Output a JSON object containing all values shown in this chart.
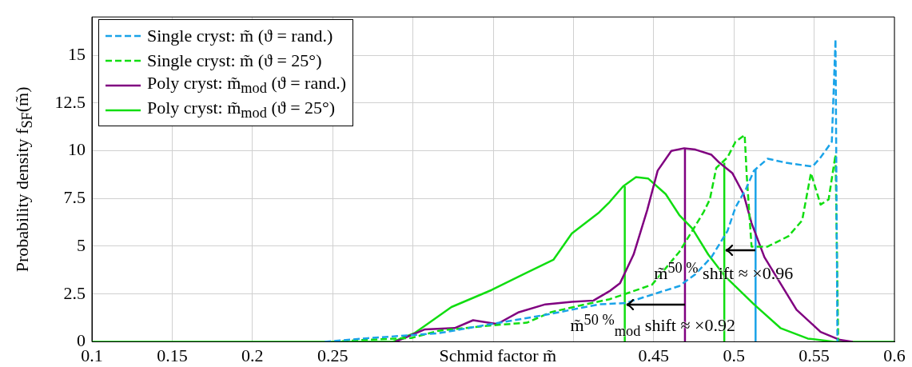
{
  "chart_data": {
    "type": "line",
    "xlabel": "Schmid factor m̃",
    "ylabel": "Probability density f$_{SF}$(m̃)",
    "xlim": [
      0.1,
      0.6
    ],
    "ylim": [
      0,
      17
    ],
    "xticks": [
      0.1,
      0.15,
      0.2,
      0.25,
      {
        "value": 0.3,
        "label": null
      },
      {
        "value": 0.35,
        "label": null
      },
      {
        "value": 0.4,
        "label": null
      },
      0.45,
      0.5,
      0.55,
      0.6
    ],
    "yticks": [
      0,
      2.5,
      5,
      7.5,
      10,
      12.5,
      15
    ],
    "grid": true,
    "legend": "top left",
    "series": [
      {
        "name": "Single cryst: m̃ (ϑ = rand.)",
        "color": "#1aa3e8",
        "line_style": "dashed",
        "x": [
          0.245,
          0.272,
          0.299,
          0.316,
          0.349,
          0.3825,
          0.416,
          0.4325,
          0.466,
          0.476,
          0.486,
          0.496,
          0.501,
          0.5075,
          0.5125,
          0.521,
          0.5325,
          0.549,
          0.554,
          0.561,
          0.5617,
          0.5633,
          0.5645
        ],
        "values": [
          0,
          0.19,
          0.35,
          0.45,
          0.93,
          1.41,
          1.96,
          2.03,
          2.92,
          3.54,
          4.43,
          5.8,
          7.04,
          8.0,
          8.96,
          9.58,
          9.37,
          9.17,
          9.65,
          10.47,
          12.12,
          15.83,
          0
        ]
      },
      {
        "name": "Single cryst: m̃ (ϑ = 25°)",
        "color": "#11dd11",
        "line_style": "dashed",
        "x": [
          0.25,
          0.272,
          0.299,
          0.316,
          0.349,
          0.371,
          0.386,
          0.4075,
          0.4225,
          0.4325,
          0.449,
          0.466,
          0.474,
          0.481,
          0.485,
          0.489,
          0.496,
          0.501,
          0.5067,
          0.508,
          0.511,
          0.521,
          0.534,
          0.5425,
          0.548,
          0.554,
          0.559,
          0.5633,
          0.565
        ],
        "values": [
          0,
          0.11,
          0.2,
          0.58,
          0.86,
          1.0,
          1.55,
          1.96,
          2.23,
          2.51,
          2.99,
          4.71,
          5.8,
          6.77,
          7.45,
          9.1,
          9.65,
          10.47,
          10.82,
          8.69,
          4.98,
          4.98,
          5.53,
          6.35,
          8.83,
          7.18,
          7.45,
          9.79,
          0
        ]
      },
      {
        "name": "Poly cryst: m̃$_{mod}$ (ϑ = rand.)",
        "color": "#800080",
        "line_style": "solid",
        "x": [
          0.289,
          0.3075,
          0.326,
          0.3375,
          0.3525,
          0.366,
          0.3825,
          0.399,
          0.4125,
          0.4225,
          0.429,
          0.4375,
          0.446,
          0.4525,
          0.461,
          0.469,
          0.476,
          0.486,
          0.491,
          0.499,
          0.506,
          0.511,
          0.519,
          0.539,
          0.554,
          0.566,
          0.574
        ],
        "values": [
          0,
          0.65,
          0.72,
          1.13,
          0.93,
          1.55,
          1.96,
          2.09,
          2.16,
          2.65,
          3.06,
          4.57,
          6.9,
          8.96,
          9.99,
          10.13,
          10.06,
          9.79,
          9.37,
          8.83,
          7.73,
          6.21,
          4.43,
          1.68,
          0.52,
          0.1,
          0
        ]
      },
      {
        "name": "Poly cryst: m̃$_{mod}$ (ϑ = 25°)",
        "color": "#11dd11",
        "line_style": "solid",
        "x": [
          0.1,
          0.2875,
          0.3009,
          0.324,
          0.349,
          0.369,
          0.3875,
          0.399,
          0.416,
          0.4225,
          0.431,
          0.439,
          0.4465,
          0.4575,
          0.466,
          0.474,
          0.484,
          0.494,
          0.5125,
          0.529,
          0.546,
          0.5625,
          0.6
        ],
        "values": [
          0,
          0,
          0.45,
          1.82,
          2.71,
          3.54,
          4.29,
          5.67,
          6.77,
          7.31,
          8.14,
          8.62,
          8.55,
          7.73,
          6.63,
          5.94,
          4.57,
          3.47,
          1.96,
          0.72,
          0.17,
          0,
          0
        ]
      },
      {
        "color": "#11dd11",
        "line_style": "solid",
        "x": [
          0.432,
          0.432
        ],
        "values": [
          0,
          8.14
        ]
      },
      {
        "color": "#800080",
        "line_style": "solid",
        "x": [
          0.4695,
          0.4695
        ],
        "values": [
          0,
          10.09
        ]
      },
      {
        "color": "#11dd11",
        "line_style": "solid",
        "x": [
          0.494,
          0.494
        ],
        "values": [
          0,
          9.37
        ]
      },
      {
        "color": "#1aa3e8",
        "line_style": "solid",
        "x": [
          0.5135,
          0.5135
        ],
        "values": [
          0,
          9.03
        ]
      }
    ],
    "annotations": [
      {
        "text": "m̃$^{50 %}$ shift ≈ ×0.96",
        "x": 0.5135,
        "y": 4.77
      },
      {
        "text": "m̃$^{50 %}$$_{mod}$ shift ≈ ×0.92",
        "x": 0.4695,
        "y": 1.96
      }
    ]
  }
}
